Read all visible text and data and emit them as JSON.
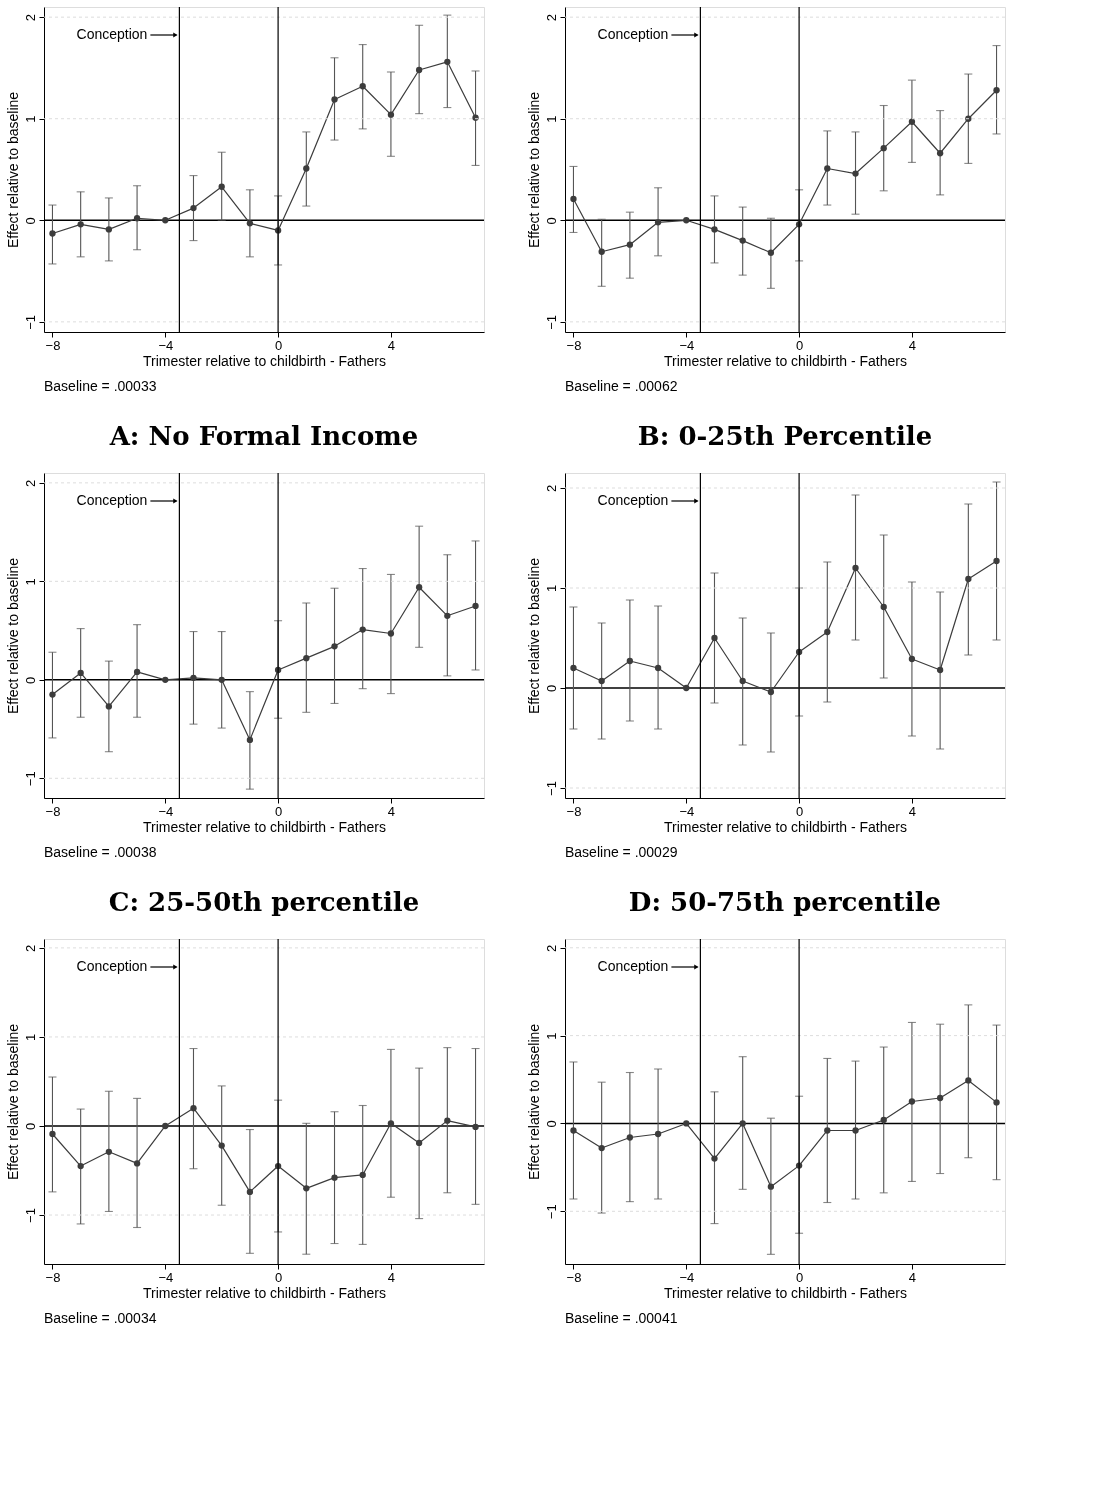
{
  "chart_data": [
    {
      "type": "line",
      "title": "A: No Formal Income",
      "xlabel": "Trimester relative to childbirth - Fathers",
      "ylabel": "Effect relative to baseline",
      "x": [
        -8,
        -7,
        -6,
        -5,
        -4,
        -3,
        -2,
        -1,
        0,
        1,
        2,
        3,
        4,
        5,
        6,
        7
      ],
      "xlim": [
        -8.3,
        7.3
      ],
      "xticks": [
        -8,
        -4,
        0,
        4
      ],
      "ylim": [
        -1.1,
        2.1
      ],
      "yticks": [
        -1,
        0,
        1,
        2
      ],
      "grid": "y",
      "marker": "circle",
      "line_style": "solid",
      "series": [
        {
          "color": "#3c3c3c",
          "values": [
            -0.13,
            -0.04,
            -0.09,
            0.02,
            0,
            0.12,
            0.33,
            -0.03,
            -0.1,
            0.51,
            1.19,
            1.32,
            1.04,
            1.48,
            1.56,
            1.01
          ],
          "errors": [
            [
              -0.43,
              0.15
            ],
            [
              -0.36,
              0.28
            ],
            [
              -0.4,
              0.22
            ],
            [
              -0.29,
              0.34
            ],
            null,
            [
              -0.2,
              0.44
            ],
            [
              0.0,
              0.67
            ],
            [
              -0.36,
              0.3
            ],
            [
              -0.44,
              0.24
            ],
            [
              0.14,
              0.87
            ],
            [
              0.79,
              1.6
            ],
            [
              0.9,
              1.73
            ],
            [
              0.63,
              1.46
            ],
            [
              1.05,
              1.92
            ],
            [
              1.11,
              2.02
            ],
            [
              0.54,
              1.47
            ]
          ]
        }
      ],
      "ref_lines": [
        {
          "axis": "x",
          "value": -3.5,
          "label": "Conception",
          "color": "#000000"
        },
        {
          "axis": "x",
          "value": 0,
          "color": "#000000"
        },
        {
          "axis": "y",
          "value": 0,
          "color": "#000000"
        }
      ],
      "annotations": [
        "Baseline = .00033"
      ]
    },
    {
      "type": "line",
      "title": "B: 0-25th Percentile",
      "xlabel": "Trimester relative to childbirth - Fathers",
      "ylabel": "Effect relative to baseline",
      "x": [
        -8,
        -7,
        -6,
        -5,
        -4,
        -3,
        -2,
        -1,
        0,
        1,
        2,
        3,
        4,
        5,
        6,
        7
      ],
      "xlim": [
        -8.3,
        7.3
      ],
      "xticks": [
        -8,
        -4,
        0,
        4
      ],
      "ylim": [
        -1.1,
        2.1
      ],
      "yticks": [
        -1,
        0,
        1,
        2
      ],
      "grid": "y",
      "marker": "circle",
      "line_style": "solid",
      "series": [
        {
          "color": "#3c3c3c",
          "values": [
            0.21,
            -0.31,
            -0.24,
            -0.02,
            0,
            -0.09,
            -0.2,
            -0.32,
            -0.04,
            0.51,
            0.46,
            0.71,
            0.97,
            0.66,
            1.0,
            1.28
          ],
          "errors": [
            [
              -0.12,
              0.53
            ],
            [
              -0.65,
              0.01
            ],
            [
              -0.57,
              0.08
            ],
            [
              -0.35,
              0.32
            ],
            null,
            [
              -0.42,
              0.24
            ],
            [
              -0.54,
              0.13
            ],
            [
              -0.67,
              0.02
            ],
            [
              -0.4,
              0.3
            ],
            [
              0.15,
              0.88
            ],
            [
              0.06,
              0.87
            ],
            [
              0.29,
              1.13
            ],
            [
              0.57,
              1.38
            ],
            [
              0.25,
              1.08
            ],
            [
              0.56,
              1.44
            ],
            [
              0.85,
              1.72
            ]
          ]
        }
      ],
      "ref_lines": [
        {
          "axis": "x",
          "value": -3.5,
          "label": "Conception",
          "color": "#000000"
        },
        {
          "axis": "x",
          "value": 0,
          "color": "#000000"
        },
        {
          "axis": "y",
          "value": 0,
          "color": "#000000"
        }
      ],
      "annotations": [
        "Baseline = .00062"
      ]
    },
    {
      "type": "line",
      "title": "C: 25-50th percentile",
      "xlabel": "Trimester relative to childbirth - Fathers",
      "ylabel": "Effect relative to baseline",
      "x": [
        -8,
        -7,
        -6,
        -5,
        -4,
        -3,
        -2,
        -1,
        0,
        1,
        2,
        3,
        4,
        5,
        6,
        7
      ],
      "xlim": [
        -8.3,
        7.3
      ],
      "xticks": [
        -8,
        -4,
        0,
        4
      ],
      "ylim": [
        -1.2,
        2.1
      ],
      "yticks": [
        -1,
        0,
        1,
        2
      ],
      "grid": "y",
      "marker": "circle",
      "line_style": "solid",
      "series": [
        {
          "color": "#3c3c3c",
          "values": [
            -0.15,
            0.07,
            -0.27,
            0.08,
            0,
            0.02,
            0,
            -0.61,
            0.1,
            0.22,
            0.34,
            0.51,
            0.47,
            0.94,
            0.65,
            0.75
          ],
          "errors": [
            [
              -0.59,
              0.28
            ],
            [
              -0.38,
              0.52
            ],
            [
              -0.73,
              0.19
            ],
            [
              -0.38,
              0.56
            ],
            null,
            [
              -0.45,
              0.49
            ],
            [
              -0.49,
              0.49
            ],
            [
              -1.11,
              -0.12
            ],
            [
              -0.39,
              0.6
            ],
            [
              -0.33,
              0.78
            ],
            [
              -0.24,
              0.93
            ],
            [
              -0.09,
              1.13
            ],
            [
              -0.14,
              1.07
            ],
            [
              0.33,
              1.56
            ],
            [
              0.04,
              1.27
            ],
            [
              0.1,
              1.41
            ]
          ]
        }
      ],
      "ref_lines": [
        {
          "axis": "x",
          "value": -3.5,
          "label": "Conception",
          "color": "#000000"
        },
        {
          "axis": "x",
          "value": 0,
          "color": "#000000"
        },
        {
          "axis": "y",
          "value": 0,
          "color": "#000000"
        }
      ],
      "annotations": [
        "Baseline = .00038"
      ]
    },
    {
      "type": "line",
      "title": "D: 50-75th percentile",
      "xlabel": "Trimester relative to childbirth - Fathers",
      "ylabel": "Effect relative to baseline",
      "x": [
        -8,
        -7,
        -6,
        -5,
        -4,
        -3,
        -2,
        -1,
        0,
        1,
        2,
        3,
        4,
        5,
        6,
        7
      ],
      "xlim": [
        -8.3,
        7.3
      ],
      "xticks": [
        -8,
        -4,
        0,
        4
      ],
      "ylim": [
        -1.1,
        2.15
      ],
      "yticks": [
        -1,
        0,
        1,
        2
      ],
      "grid": "y",
      "marker": "circle",
      "line_style": "solid",
      "series": [
        {
          "color": "#3c3c3c",
          "values": [
            0.2,
            0.07,
            0.27,
            0.2,
            0,
            0.5,
            0.07,
            -0.04,
            0.36,
            0.56,
            1.2,
            0.81,
            0.29,
            0.18,
            1.09,
            1.27
          ],
          "errors": [
            [
              -0.41,
              0.81
            ],
            [
              -0.51,
              0.65
            ],
            [
              -0.33,
              0.88
            ],
            [
              -0.41,
              0.82
            ],
            null,
            [
              -0.15,
              1.15
            ],
            [
              -0.57,
              0.7
            ],
            [
              -0.64,
              0.55
            ],
            [
              -0.28,
              1.0
            ],
            [
              -0.14,
              1.26
            ],
            [
              0.48,
              1.93
            ],
            [
              0.1,
              1.53
            ],
            [
              -0.48,
              1.06
            ],
            [
              -0.61,
              0.96
            ],
            [
              0.33,
              1.84
            ],
            [
              0.48,
              2.06
            ]
          ]
        }
      ],
      "ref_lines": [
        {
          "axis": "x",
          "value": -3.5,
          "label": "Conception",
          "color": "#000000"
        },
        {
          "axis": "x",
          "value": 0,
          "color": "#000000"
        },
        {
          "axis": "y",
          "value": 0,
          "color": "#000000"
        }
      ],
      "annotations": [
        "Baseline = .00029"
      ]
    },
    {
      "type": "line",
      "xlabel": "Trimester relative to childbirth - Fathers",
      "ylabel": "Effect relative to baseline",
      "x": [
        -8,
        -7,
        -6,
        -5,
        -4,
        -3,
        -2,
        -1,
        0,
        1,
        2,
        3,
        4,
        5,
        6,
        7
      ],
      "xlim": [
        -8.3,
        7.3
      ],
      "xticks": [
        -8,
        -4,
        0,
        4
      ],
      "ylim": [
        -1.55,
        2.1
      ],
      "yticks": [
        -1,
        0,
        1,
        2
      ],
      "grid": "y",
      "marker": "circle",
      "line_style": "solid",
      "series": [
        {
          "color": "#3c3c3c",
          "values": [
            -0.09,
            -0.45,
            -0.29,
            -0.42,
            0,
            0.2,
            -0.22,
            -0.74,
            -0.45,
            -0.7,
            -0.58,
            -0.55,
            0.03,
            -0.19,
            0.06,
            -0.01
          ],
          "errors": [
            [
              -0.74,
              0.55
            ],
            [
              -1.1,
              0.19
            ],
            [
              -0.96,
              0.39
            ],
            [
              -1.14,
              0.31
            ],
            null,
            [
              -0.48,
              0.87
            ],
            [
              -0.89,
              0.45
            ],
            [
              -1.43,
              -0.04
            ],
            [
              -1.19,
              0.29
            ],
            [
              -1.44,
              0.03
            ],
            [
              -1.32,
              0.16
            ],
            [
              -1.33,
              0.23
            ],
            [
              -0.8,
              0.86
            ],
            [
              -1.04,
              0.65
            ],
            [
              -0.75,
              0.88
            ],
            [
              -0.88,
              0.87
            ]
          ]
        }
      ],
      "ref_lines": [
        {
          "axis": "x",
          "value": -3.5,
          "label": "Conception",
          "color": "#000000"
        },
        {
          "axis": "x",
          "value": 0,
          "color": "#000000"
        },
        {
          "axis": "y",
          "value": 0,
          "color": "#000000"
        }
      ],
      "annotations": [
        "Baseline = .00034"
      ]
    },
    {
      "type": "line",
      "xlabel": "Trimester relative to childbirth - Fathers",
      "ylabel": "Effect relative to baseline",
      "x": [
        -8,
        -7,
        -6,
        -5,
        -4,
        -3,
        -2,
        -1,
        0,
        1,
        2,
        3,
        4,
        5,
        6,
        7
      ],
      "xlim": [
        -8.3,
        7.3
      ],
      "xticks": [
        -8,
        -4,
        0,
        4
      ],
      "ylim": [
        -1.6,
        2.1
      ],
      "yticks": [
        -1,
        0,
        1,
        2
      ],
      "grid": "y",
      "marker": "circle",
      "line_style": "solid",
      "series": [
        {
          "color": "#3c3c3c",
          "values": [
            -0.08,
            -0.28,
            -0.16,
            -0.12,
            0,
            -0.4,
            0,
            -0.72,
            -0.48,
            -0.08,
            -0.08,
            0.04,
            0.25,
            0.29,
            0.49,
            0.24
          ],
          "errors": [
            [
              -0.86,
              0.7
            ],
            [
              -1.02,
              0.47
            ],
            [
              -0.89,
              0.58
            ],
            [
              -0.86,
              0.62
            ],
            null,
            [
              -1.14,
              0.36
            ],
            [
              -0.75,
              0.76
            ],
            [
              -1.49,
              0.06
            ],
            [
              -1.25,
              0.31
            ],
            [
              -0.9,
              0.74
            ],
            [
              -0.86,
              0.71
            ],
            [
              -0.79,
              0.87
            ],
            [
              -0.66,
              1.15
            ],
            [
              -0.57,
              1.13
            ],
            [
              -0.39,
              1.35
            ],
            [
              -0.64,
              1.12
            ]
          ]
        }
      ],
      "ref_lines": [
        {
          "axis": "x",
          "value": -3.5,
          "label": "Conception",
          "color": "#000000"
        },
        {
          "axis": "x",
          "value": 0,
          "color": "#000000"
        },
        {
          "axis": "y",
          "value": 0,
          "color": "#000000"
        }
      ],
      "annotations": [
        "Baseline = .00041"
      ]
    }
  ]
}
